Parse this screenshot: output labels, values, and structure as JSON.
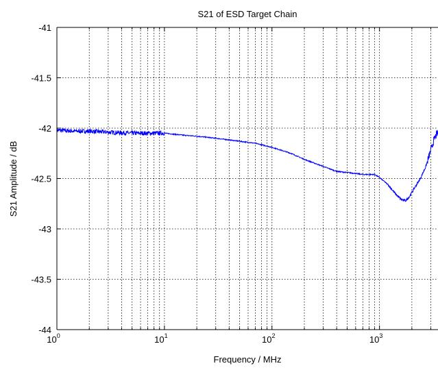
{
  "chart_data": {
    "type": "line",
    "title": "S21 of ESD Target Chain",
    "xlabel": "Frequency / MHz",
    "ylabel": "S21 Amplitude / dB",
    "x_scale": "log",
    "xlim": [
      1,
      3500
    ],
    "ylim": [
      -44,
      -41
    ],
    "grid": true,
    "x_ticks": [
      {
        "value": 1,
        "base": "10",
        "exp": "0"
      },
      {
        "value": 10,
        "base": "10",
        "exp": "1"
      },
      {
        "value": 100,
        "base": "10",
        "exp": "2"
      },
      {
        "value": 1000,
        "base": "10",
        "exp": "3"
      }
    ],
    "y_ticks": [
      {
        "value": -41,
        "label": "-41"
      },
      {
        "value": -41.5,
        "label": "-41.5"
      },
      {
        "value": -42,
        "label": "-42"
      },
      {
        "value": -42.5,
        "label": "-42.5"
      },
      {
        "value": -43,
        "label": "-43"
      },
      {
        "value": -43.5,
        "label": "-43.5"
      },
      {
        "value": -44,
        "label": "-44"
      }
    ],
    "series": [
      {
        "color": "#0000ff",
        "x": [
          1,
          1.5,
          2,
          3,
          5,
          7,
          10,
          15,
          20,
          30,
          50,
          70,
          100,
          150,
          200,
          300,
          400,
          500,
          600,
          700,
          800,
          900,
          1000,
          1200,
          1400,
          1600,
          1750,
          1900,
          2100,
          2400,
          2700,
          3000,
          3200,
          3400,
          3500
        ],
        "y": [
          -42.02,
          -42.03,
          -42.03,
          -42.04,
          -42.05,
          -42.05,
          -42.05,
          -42.07,
          -42.08,
          -42.1,
          -42.13,
          -42.15,
          -42.19,
          -42.25,
          -42.31,
          -42.38,
          -42.43,
          -42.44,
          -42.45,
          -42.46,
          -42.46,
          -42.46,
          -42.49,
          -42.56,
          -42.65,
          -42.71,
          -42.72,
          -42.68,
          -42.6,
          -42.5,
          -42.38,
          -42.22,
          -42.12,
          -42.06,
          -42.05
        ]
      }
    ]
  }
}
